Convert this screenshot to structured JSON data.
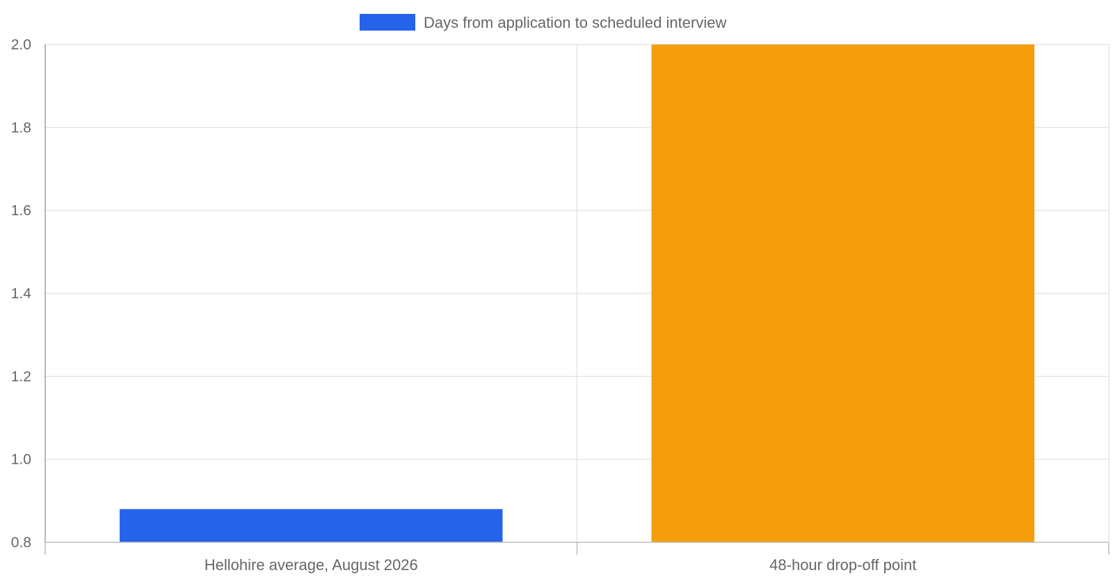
{
  "chart_data": {
    "type": "bar",
    "categories": [
      "Hellohire average, August 2026",
      "48-hour drop-off point"
    ],
    "series": [
      {
        "name": "Days from application to scheduled interview",
        "values": [
          0.88,
          2.0
        ],
        "colors": [
          "#2563eb",
          "#f59e0b"
        ]
      }
    ],
    "ylim": [
      0.8,
      2.0
    ],
    "yticks": [
      "0.8",
      "1.0",
      "1.2",
      "1.4",
      "1.6",
      "1.8",
      "2.0"
    ],
    "grid": true,
    "legend_position": "top-center",
    "legend_color": "#2563eb"
  }
}
